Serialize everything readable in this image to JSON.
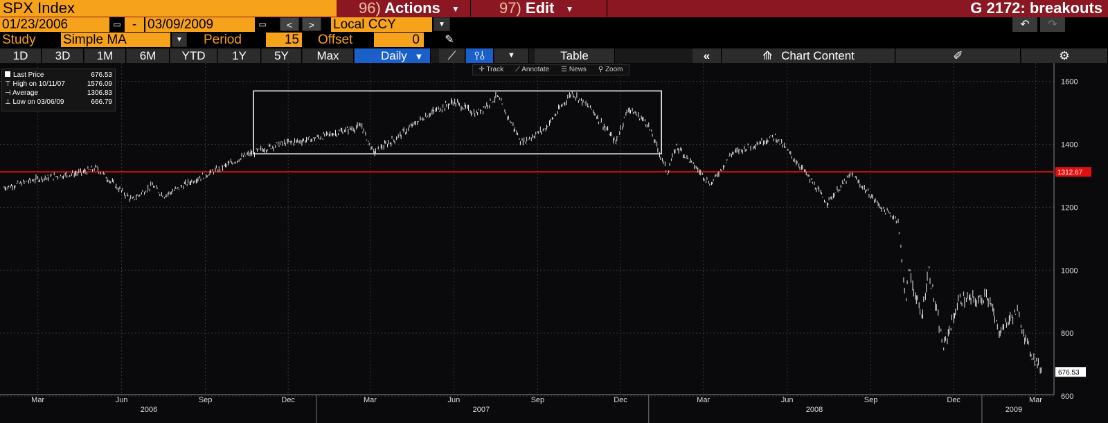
{
  "header": {
    "ticker": "SPX Index",
    "actions": {
      "num": "96)",
      "label": "Actions"
    },
    "edit": {
      "num": "97)",
      "label": "Edit"
    },
    "graph_title": "G 2172: breakouts"
  },
  "range": {
    "start_date": "01/23/2006",
    "separator": "-",
    "end_date": "03/09/2009",
    "currency": "Local CCY"
  },
  "study": {
    "label": "Study",
    "value": "Simple MA",
    "period_label": "Period",
    "period_value": "15",
    "offset_label": "Offset",
    "offset_value": "0"
  },
  "tabs": [
    "1D",
    "3D",
    "1M",
    "6M",
    "YTD",
    "1Y",
    "5Y",
    "Max"
  ],
  "frequency": "Daily",
  "table_label": "Table",
  "chart_content_label": "Chart Content",
  "tools": {
    "track": "Track",
    "annotate": "Annotate",
    "news": "News",
    "zoom": "Zoom"
  },
  "legend": {
    "last_label": "Last Price",
    "last_value": "676.53",
    "high_label": "High on 10/11/07",
    "high_value": "1576.09",
    "avg_label": "Average",
    "avg_value": "1306.83",
    "low_label": "Low on 03/06/09",
    "low_value": "666.79"
  },
  "colors": {
    "accent": "#f7a21b",
    "header": "#8a1722",
    "selected_tab": "#1b5fc9",
    "level_line": "#e01010"
  },
  "chart_data": {
    "type": "line",
    "title": "",
    "xlabel": "",
    "ylabel": "",
    "x_start": "2006-01-23",
    "x_end": "2009-03-09",
    "ylim": [
      600,
      1650
    ],
    "y_ticks": [
      600,
      800,
      1000,
      1200,
      1400,
      1600
    ],
    "x_month_labels": [
      "Mar",
      "Jun",
      "Sep",
      "Dec",
      "Mar",
      "Jun",
      "Sep",
      "Dec",
      "Mar",
      "Jun",
      "Sep",
      "Dec",
      "Mar"
    ],
    "x_year_labels": [
      "2006",
      "2007",
      "2008",
      "2009"
    ],
    "grid": true,
    "series": [
      {
        "values": [
          {
            "x": "2006-01-23",
            "y": 1262
          },
          {
            "x": "2006-03-01",
            "y": 1290
          },
          {
            "x": "2006-04-20",
            "y": 1311
          },
          {
            "x": "2006-05-05",
            "y": 1325
          },
          {
            "x": "2006-05-25",
            "y": 1270
          },
          {
            "x": "2006-06-13",
            "y": 1223
          },
          {
            "x": "2006-07-05",
            "y": 1270
          },
          {
            "x": "2006-07-18",
            "y": 1236
          },
          {
            "x": "2006-08-15",
            "y": 1280
          },
          {
            "x": "2006-09-15",
            "y": 1320
          },
          {
            "x": "2006-10-20",
            "y": 1370
          },
          {
            "x": "2006-11-20",
            "y": 1400
          },
          {
            "x": "2006-12-29",
            "y": 1418
          },
          {
            "x": "2007-02-20",
            "y": 1458
          },
          {
            "x": "2007-03-05",
            "y": 1374
          },
          {
            "x": "2007-03-30",
            "y": 1420
          },
          {
            "x": "2007-05-01",
            "y": 1490
          },
          {
            "x": "2007-06-01",
            "y": 1536
          },
          {
            "x": "2007-06-26",
            "y": 1497
          },
          {
            "x": "2007-07-19",
            "y": 1553
          },
          {
            "x": "2007-08-15",
            "y": 1406
          },
          {
            "x": "2007-09-10",
            "y": 1451
          },
          {
            "x": "2007-10-09",
            "y": 1565
          },
          {
            "x": "2007-11-01",
            "y": 1508
          },
          {
            "x": "2007-11-26",
            "y": 1407
          },
          {
            "x": "2007-12-10",
            "y": 1515
          },
          {
            "x": "2007-12-31",
            "y": 1468
          },
          {
            "x": "2008-01-22",
            "y": 1310
          },
          {
            "x": "2008-02-01",
            "y": 1395
          },
          {
            "x": "2008-03-10",
            "y": 1273
          },
          {
            "x": "2008-04-01",
            "y": 1370
          },
          {
            "x": "2008-05-19",
            "y": 1426
          },
          {
            "x": "2008-06-20",
            "y": 1317
          },
          {
            "x": "2008-07-15",
            "y": 1214
          },
          {
            "x": "2008-08-11",
            "y": 1305
          },
          {
            "x": "2008-09-15",
            "y": 1193
          },
          {
            "x": "2008-10-01",
            "y": 1160
          },
          {
            "x": "2008-10-10",
            "y": 899
          },
          {
            "x": "2008-10-13",
            "y": 1003
          },
          {
            "x": "2008-10-27",
            "y": 848
          },
          {
            "x": "2008-11-04",
            "y": 1005
          },
          {
            "x": "2008-11-20",
            "y": 752
          },
          {
            "x": "2008-12-08",
            "y": 909
          },
          {
            "x": "2008-12-31",
            "y": 903
          },
          {
            "x": "2009-01-06",
            "y": 934
          },
          {
            "x": "2009-01-20",
            "y": 805
          },
          {
            "x": "2009-02-09",
            "y": 869
          },
          {
            "x": "2009-02-23",
            "y": 743
          },
          {
            "x": "2009-03-09",
            "y": 676.53
          }
        ]
      }
    ],
    "horizontal_line": {
      "value": 1312.67,
      "label": "1312.67"
    },
    "last_value_label": "676.53",
    "box": {
      "x_start": "2006-10-24",
      "x_end": "2008-01-15",
      "y_low": 1370,
      "y_high": 1570
    }
  }
}
